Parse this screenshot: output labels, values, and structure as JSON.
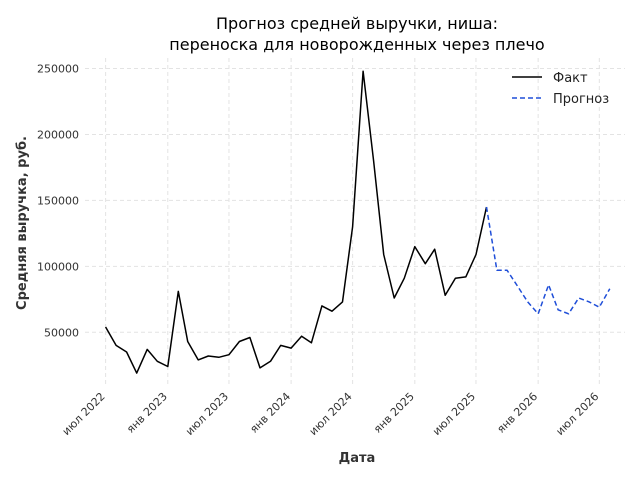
{
  "chart_data": {
    "type": "line",
    "title_lines": [
      "Прогноз средней выручки, ниша:",
      "переноска для новорожденных через плечо"
    ],
    "xlabel": "Дата",
    "ylabel": "Средняя выручка, руб.",
    "x_ticks": [
      "июл 2022",
      "янв 2023",
      "июл 2023",
      "янв 2024",
      "июл 2024",
      "янв 2025",
      "июл 2025",
      "янв 2026",
      "июл 2026"
    ],
    "y_ticks": [
      "50000",
      "100000",
      "150000",
      "200000",
      "250000"
    ],
    "y_tick_values": [
      50000,
      100000,
      150000,
      200000,
      250000
    ],
    "ylim": [
      10000,
      258000
    ],
    "xlim": [
      "2022-05-01",
      "2026-09-15"
    ],
    "grid": true,
    "legend_position": "top-right",
    "series": [
      {
        "name": "Факт",
        "color": "#000000",
        "style": "solid",
        "x": [
          "2022-07-01",
          "2022-08-01",
          "2022-09-01",
          "2022-10-01",
          "2022-11-01",
          "2022-12-01",
          "2023-01-01",
          "2023-02-01",
          "2023-03-01",
          "2023-04-01",
          "2023-05-01",
          "2023-06-01",
          "2023-07-01",
          "2023-08-01",
          "2023-09-01",
          "2023-10-01",
          "2023-11-01",
          "2023-12-01",
          "2024-01-01",
          "2024-02-01",
          "2024-03-01",
          "2024-04-01",
          "2024-05-01",
          "2024-06-01",
          "2024-07-01",
          "2024-08-01",
          "2024-09-01",
          "2024-10-01",
          "2024-11-01",
          "2024-12-01",
          "2025-01-01",
          "2025-02-01",
          "2025-03-01",
          "2025-04-01",
          "2025-05-01",
          "2025-06-01",
          "2025-07-01",
          "2025-08-01"
        ],
        "y": [
          54000,
          40000,
          35000,
          19000,
          37000,
          28000,
          24000,
          81000,
          43000,
          29000,
          32000,
          31000,
          33000,
          43000,
          46000,
          23000,
          28000,
          40000,
          38000,
          47000,
          42000,
          70000,
          66000,
          73000,
          130000,
          248000,
          180000,
          109000,
          76000,
          91000,
          115000,
          102000,
          113000,
          78000,
          91000,
          92000,
          109000,
          145000
        ]
      },
      {
        "name": "Прогноз",
        "color": "#1f4ed8",
        "style": "dashed",
        "x": [
          "2025-08-01",
          "2025-09-01",
          "2025-10-01",
          "2025-11-01",
          "2025-12-01",
          "2026-01-01",
          "2026-02-01",
          "2026-03-01",
          "2026-04-01",
          "2026-05-01",
          "2026-06-01",
          "2026-07-01",
          "2026-08-01"
        ],
        "y": [
          145000,
          97000,
          97000,
          85000,
          73000,
          64000,
          86000,
          67000,
          64000,
          76000,
          73000,
          69000,
          83000
        ]
      }
    ]
  }
}
